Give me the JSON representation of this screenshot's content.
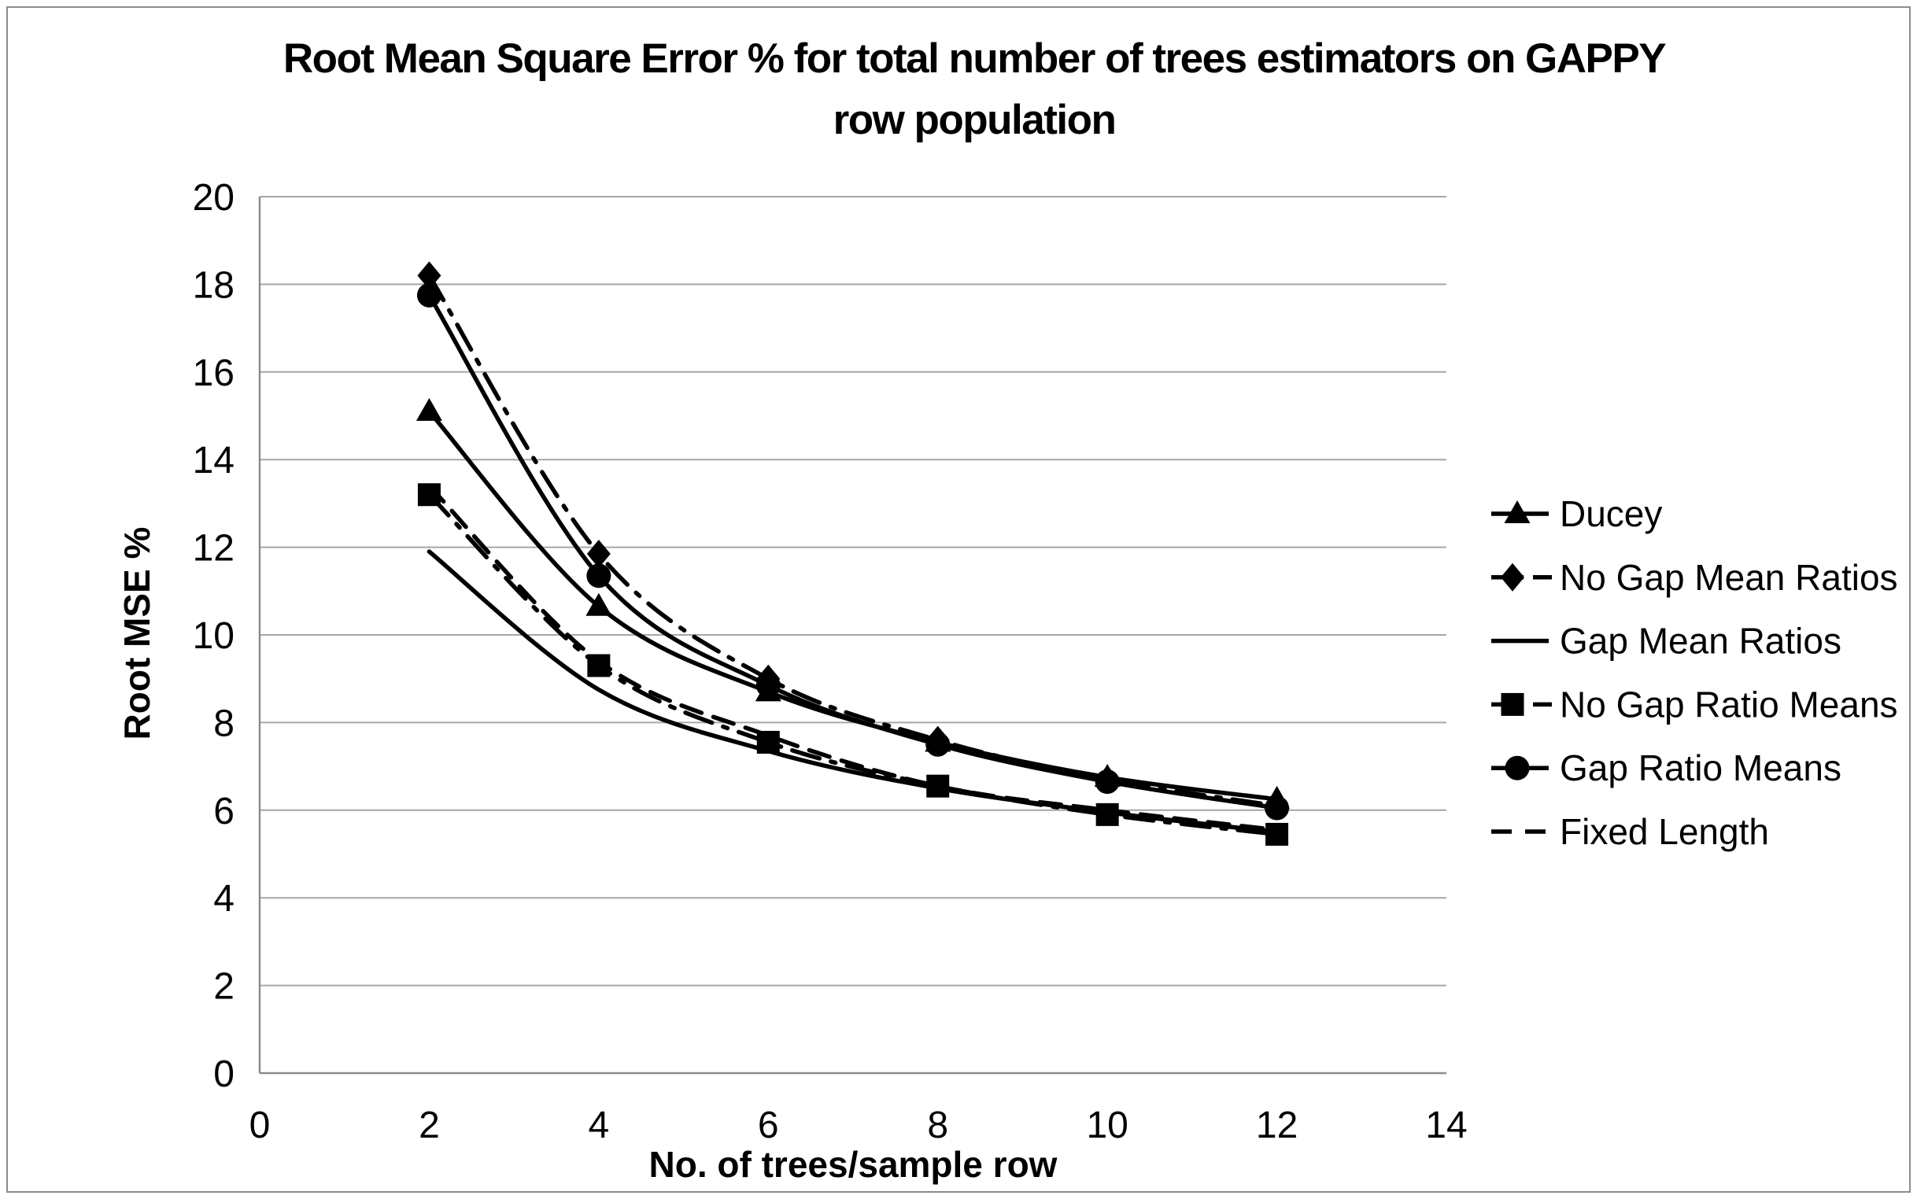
{
  "title": {
    "line1": "Root Mean Square Error % for total number of trees estimators on GAPPY",
    "line2": "row population"
  },
  "chart_data": {
    "type": "line",
    "title": "Root Mean Square Error % for total number of trees estimators on GAPPY row population",
    "xlabel": "No. of trees/sample row",
    "ylabel": "Root MSE %",
    "xlim": [
      0,
      14
    ],
    "ylim": [
      0,
      20
    ],
    "x_ticks": [
      0,
      2,
      4,
      6,
      8,
      10,
      12,
      14
    ],
    "y_ticks": [
      0,
      2,
      4,
      6,
      8,
      10,
      12,
      14,
      16,
      18,
      20
    ],
    "grid": "horizontal",
    "legend_position": "right",
    "x": [
      2,
      4,
      6,
      8,
      10,
      12
    ],
    "series": [
      {
        "name": "Ducey",
        "marker": "triangle",
        "line": "solid",
        "values": [
          15.1,
          10.65,
          8.7,
          7.55,
          6.75,
          6.25
        ]
      },
      {
        "name": "No Gap Mean Ratios",
        "marker": "diamond",
        "line": "dashdot",
        "values": [
          18.2,
          11.85,
          9.0,
          7.6,
          6.7,
          6.1
        ]
      },
      {
        "name": "Gap Mean Ratios",
        "marker": "none",
        "line": "solid",
        "values": [
          11.9,
          8.75,
          7.35,
          6.5,
          5.95,
          5.5
        ]
      },
      {
        "name": "No Gap Ratio Means",
        "marker": "square",
        "line": "dashdot",
        "values": [
          13.2,
          9.3,
          7.55,
          6.55,
          5.9,
          5.45
        ]
      },
      {
        "name": "Gap Ratio Means",
        "marker": "circle",
        "line": "solid",
        "values": [
          17.75,
          11.35,
          8.85,
          7.5,
          6.65,
          6.05
        ]
      },
      {
        "name": "Fixed Length",
        "marker": "none",
        "line": "dashed",
        "values": [
          13.4,
          9.4,
          7.7,
          6.55,
          6.0,
          5.55
        ]
      }
    ],
    "colors": {
      "series": "#000000",
      "grid": "#a6a6a6",
      "axis": "#8c8c8c",
      "text": "#000000",
      "frame_border": "#8c8c8c"
    }
  }
}
